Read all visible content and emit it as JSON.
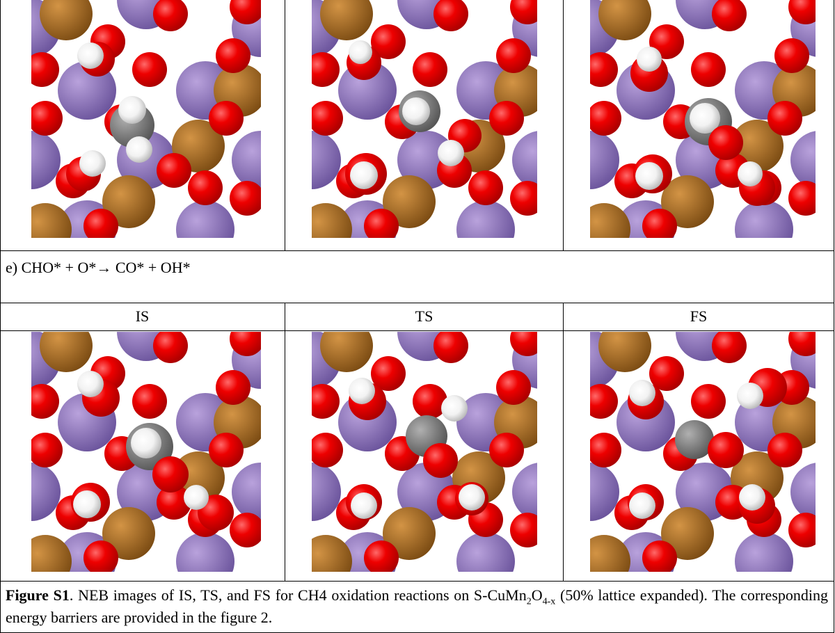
{
  "section_label": "e) CHO* + O*→ CO* + OH*",
  "columns": [
    "IS",
    "TS",
    "FS"
  ],
  "caption": {
    "label": "Figure S1",
    "parts": [
      ". NEB images of IS, TS, and FS for CH4 oxidation reactions on S-CuMn",
      "2",
      "O",
      "4-x",
      " (50% lattice expanded). The corresponding energy barriers are provided in the figure 2."
    ]
  }
}
